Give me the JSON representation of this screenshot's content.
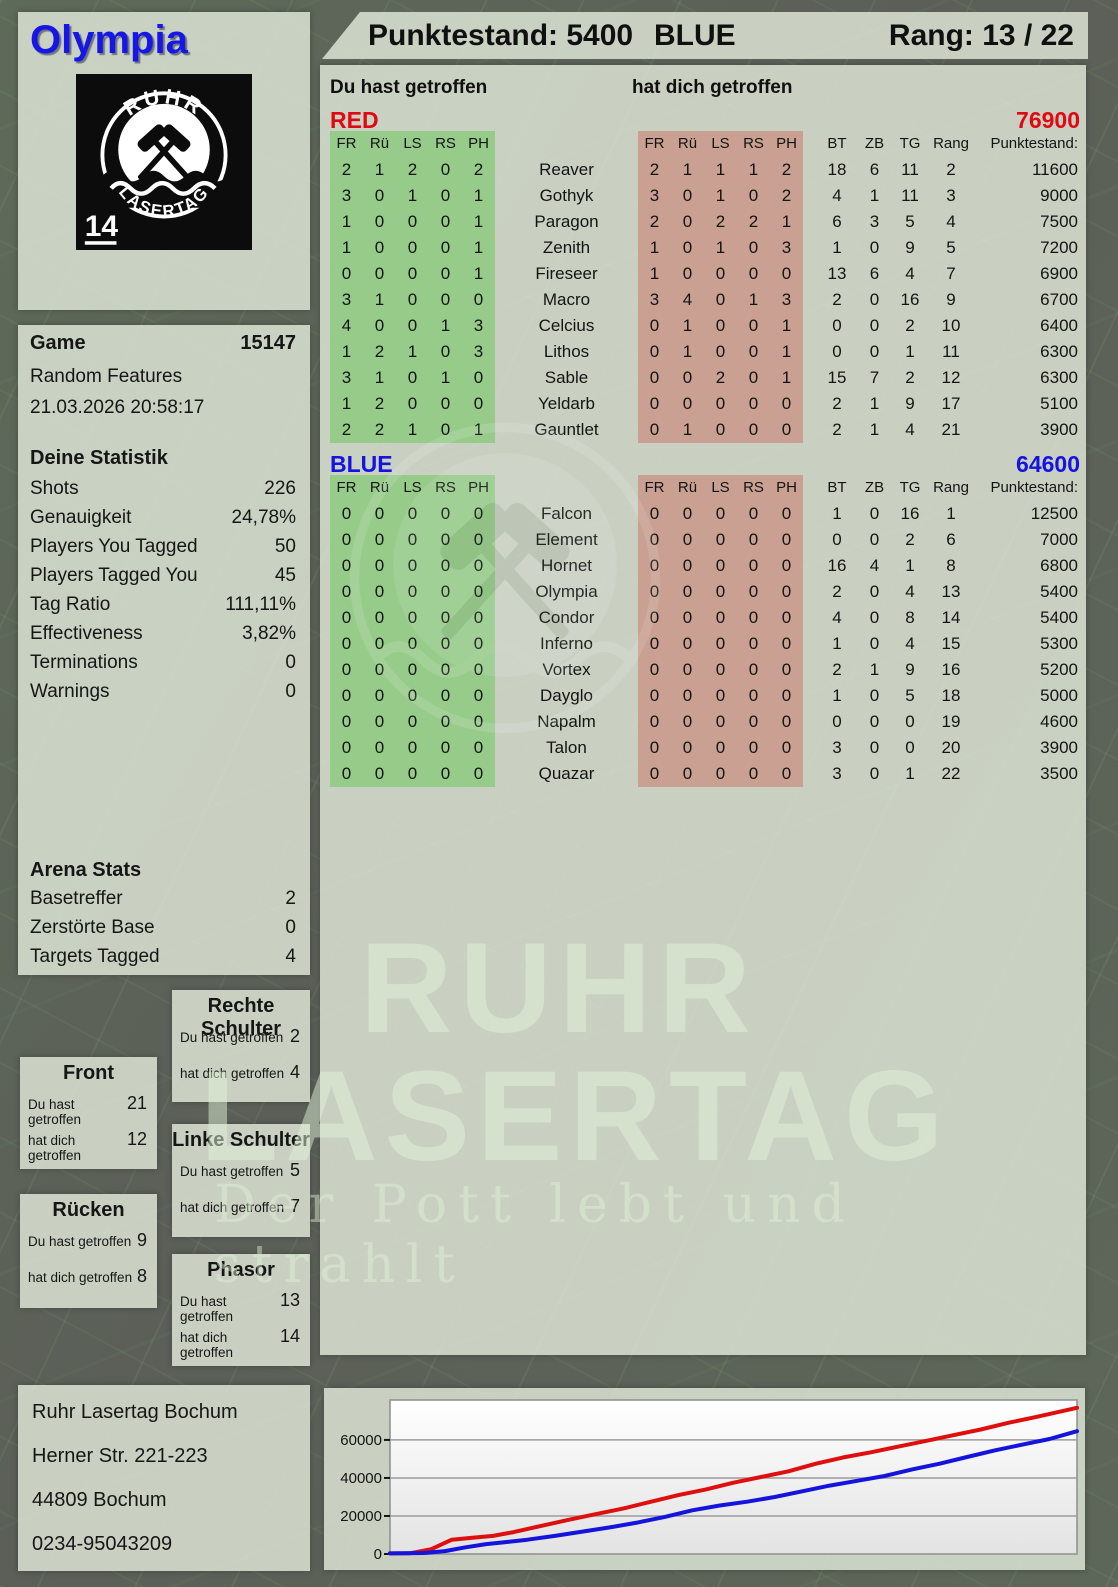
{
  "header": {
    "player": "Olympia",
    "punktestand": "Punktestand: 5400",
    "team": "BLUE",
    "rang": "Rang: 13 / 22"
  },
  "logo": {
    "arc_top": "RUHR",
    "arc_bottom": "LASERTAG",
    "badge": "14"
  },
  "game": {
    "label": "Game",
    "number": "15147",
    "mode": "Random Features",
    "datetime": "21.03.2026 20:58:17"
  },
  "deine_statistik": {
    "title": "Deine Statistik",
    "rows": [
      [
        "Shots",
        "226"
      ],
      [
        "Genauigkeit",
        "24,78%"
      ],
      [
        "Players You Tagged",
        "50"
      ],
      [
        "Players Tagged You",
        "45"
      ],
      [
        "Tag Ratio",
        "111,11%"
      ],
      [
        "Effectiveness",
        "3,82%"
      ],
      [
        "Terminations",
        "0"
      ],
      [
        "Warnings",
        "0"
      ]
    ]
  },
  "arena_stats": {
    "title": "Arena Stats",
    "rows": [
      [
        "Basetreffer",
        "2"
      ],
      [
        "Zerstörte Base",
        "0"
      ],
      [
        "Targets Tagged",
        "4"
      ]
    ]
  },
  "zones": {
    "du_label": "Du hast getroffen",
    "dich_label": "hat dich getroffen",
    "boxes": [
      {
        "id": "rechte-schulter",
        "title": "Rechte Schulter",
        "du": "2",
        "dich": "4"
      },
      {
        "id": "front",
        "title": "Front",
        "du": "21",
        "dich": "12"
      },
      {
        "id": "linke-schulter",
        "title": "Linke Schulter",
        "du": "5",
        "dich": "7"
      },
      {
        "id": "ruecken",
        "title": "Rücken",
        "du": "9",
        "dich": "8"
      },
      {
        "id": "phasor",
        "title": "Phasor",
        "du": "13",
        "dich": "14"
      }
    ]
  },
  "tables": {
    "du_header": "Du hast getroffen",
    "dich_header": "hat dich getroffen",
    "hit_cols": [
      "FR",
      "Rü",
      "LS",
      "RS",
      "PH"
    ],
    "stat_cols": [
      "BT",
      "ZB",
      "TG",
      "Rang",
      "Punktestand:"
    ],
    "teams": [
      {
        "name": "RED",
        "total": "76900",
        "color": "#e00812",
        "rows": [
          {
            "player": "Reaver",
            "du": [
              2,
              1,
              2,
              0,
              2
            ],
            "dich": [
              2,
              1,
              1,
              1,
              2
            ],
            "stats": [
              18,
              6,
              11,
              2,
              "11600"
            ]
          },
          {
            "player": "Gothyk",
            "du": [
              3,
              0,
              1,
              0,
              1
            ],
            "dich": [
              3,
              0,
              1,
              0,
              2
            ],
            "stats": [
              4,
              1,
              11,
              3,
              "9000"
            ]
          },
          {
            "player": "Paragon",
            "du": [
              1,
              0,
              0,
              0,
              1
            ],
            "dich": [
              2,
              0,
              2,
              2,
              1
            ],
            "stats": [
              6,
              3,
              5,
              4,
              "7500"
            ]
          },
          {
            "player": "Zenith",
            "du": [
              1,
              0,
              0,
              0,
              1
            ],
            "dich": [
              1,
              0,
              1,
              0,
              3
            ],
            "stats": [
              1,
              0,
              9,
              5,
              "7200"
            ]
          },
          {
            "player": "Fireseer",
            "du": [
              0,
              0,
              0,
              0,
              1
            ],
            "dich": [
              1,
              0,
              0,
              0,
              0
            ],
            "stats": [
              13,
              6,
              4,
              7,
              "6900"
            ]
          },
          {
            "player": "Macro",
            "du": [
              3,
              1,
              0,
              0,
              0
            ],
            "dich": [
              3,
              4,
              0,
              1,
              3
            ],
            "stats": [
              2,
              0,
              16,
              9,
              "6700"
            ]
          },
          {
            "player": "Celcius",
            "du": [
              4,
              0,
              0,
              1,
              3
            ],
            "dich": [
              0,
              1,
              0,
              0,
              1
            ],
            "stats": [
              0,
              0,
              2,
              10,
              "6400"
            ]
          },
          {
            "player": "Lithos",
            "du": [
              1,
              2,
              1,
              0,
              3
            ],
            "dich": [
              0,
              1,
              0,
              0,
              1
            ],
            "stats": [
              0,
              0,
              1,
              11,
              "6300"
            ]
          },
          {
            "player": "Sable",
            "du": [
              3,
              1,
              0,
              1,
              0
            ],
            "dich": [
              0,
              0,
              2,
              0,
              1
            ],
            "stats": [
              15,
              7,
              2,
              12,
              "6300"
            ]
          },
          {
            "player": "Yeldarb",
            "du": [
              1,
              2,
              0,
              0,
              0
            ],
            "dich": [
              0,
              0,
              0,
              0,
              0
            ],
            "stats": [
              2,
              1,
              9,
              17,
              "5100"
            ]
          },
          {
            "player": "Gauntlet",
            "du": [
              2,
              2,
              1,
              0,
              1
            ],
            "dich": [
              0,
              1,
              0,
              0,
              0
            ],
            "stats": [
              2,
              1,
              4,
              21,
              "3900"
            ]
          }
        ]
      },
      {
        "name": "BLUE",
        "total": "64600",
        "color": "#1513e0",
        "rows": [
          {
            "player": "Falcon",
            "du": [
              0,
              0,
              0,
              0,
              0
            ],
            "dich": [
              0,
              0,
              0,
              0,
              0
            ],
            "stats": [
              1,
              0,
              16,
              1,
              "12500"
            ]
          },
          {
            "player": "Element",
            "du": [
              0,
              0,
              0,
              0,
              0
            ],
            "dich": [
              0,
              0,
              0,
              0,
              0
            ],
            "stats": [
              0,
              0,
              2,
              6,
              "7000"
            ]
          },
          {
            "player": "Hornet",
            "du": [
              0,
              0,
              0,
              0,
              0
            ],
            "dich": [
              0,
              0,
              0,
              0,
              0
            ],
            "stats": [
              16,
              4,
              1,
              8,
              "6800"
            ]
          },
          {
            "player": "Olympia",
            "du": [
              0,
              0,
              0,
              0,
              0
            ],
            "dich": [
              0,
              0,
              0,
              0,
              0
            ],
            "stats": [
              2,
              0,
              4,
              13,
              "5400"
            ]
          },
          {
            "player": "Condor",
            "du": [
              0,
              0,
              0,
              0,
              0
            ],
            "dich": [
              0,
              0,
              0,
              0,
              0
            ],
            "stats": [
              4,
              0,
              8,
              14,
              "5400"
            ]
          },
          {
            "player": "Inferno",
            "du": [
              0,
              0,
              0,
              0,
              0
            ],
            "dich": [
              0,
              0,
              0,
              0,
              0
            ],
            "stats": [
              1,
              0,
              4,
              15,
              "5300"
            ]
          },
          {
            "player": "Vortex",
            "du": [
              0,
              0,
              0,
              0,
              0
            ],
            "dich": [
              0,
              0,
              0,
              0,
              0
            ],
            "stats": [
              2,
              1,
              9,
              16,
              "5200"
            ]
          },
          {
            "player": "Dayglo",
            "du": [
              0,
              0,
              0,
              0,
              0
            ],
            "dich": [
              0,
              0,
              0,
              0,
              0
            ],
            "stats": [
              1,
              0,
              5,
              18,
              "5000"
            ]
          },
          {
            "player": "Napalm",
            "du": [
              0,
              0,
              0,
              0,
              0
            ],
            "dich": [
              0,
              0,
              0,
              0,
              0
            ],
            "stats": [
              0,
              0,
              0,
              19,
              "4600"
            ]
          },
          {
            "player": "Talon",
            "du": [
              0,
              0,
              0,
              0,
              0
            ],
            "dich": [
              0,
              0,
              0,
              0,
              0
            ],
            "stats": [
              3,
              0,
              0,
              20,
              "3900"
            ]
          },
          {
            "player": "Quazar",
            "du": [
              0,
              0,
              0,
              0,
              0
            ],
            "dich": [
              0,
              0,
              0,
              0,
              0
            ],
            "stats": [
              3,
              0,
              1,
              22,
              "3500"
            ]
          }
        ]
      }
    ]
  },
  "address": {
    "lines": [
      "Ruhr Lasertag Bochum",
      "Herner Str. 221-223",
      "44809 Bochum",
      "0234-95043209"
    ]
  },
  "watermark": {
    "line1": "RUHR",
    "line2": "LASERTAG",
    "subtitle": "Der Pott lebt und strahlt"
  },
  "chart_data": {
    "type": "line",
    "title": "",
    "xlabel": "",
    "ylabel": "",
    "ylim": [
      0,
      81000
    ],
    "yticks": [
      0,
      20000,
      40000,
      60000
    ],
    "grid": true,
    "legend": "none",
    "x_range": [
      0,
      1
    ],
    "x_ticks_visible": false,
    "series": [
      {
        "name": "RED",
        "color": "#df0f0f",
        "final_score": 76900,
        "points": [
          [
            0,
            300
          ],
          [
            0.03,
            400
          ],
          [
            0.06,
            2500
          ],
          [
            0.09,
            7500
          ],
          [
            0.12,
            8500
          ],
          [
            0.15,
            9500
          ],
          [
            0.18,
            11500
          ],
          [
            0.22,
            14800
          ],
          [
            0.26,
            18000
          ],
          [
            0.3,
            21000
          ],
          [
            0.34,
            24000
          ],
          [
            0.38,
            27500
          ],
          [
            0.42,
            31000
          ],
          [
            0.46,
            34000
          ],
          [
            0.5,
            37500
          ],
          [
            0.54,
            40500
          ],
          [
            0.58,
            43500
          ],
          [
            0.62,
            47500
          ],
          [
            0.66,
            50800
          ],
          [
            0.7,
            53500
          ],
          [
            0.74,
            56500
          ],
          [
            0.78,
            59500
          ],
          [
            0.82,
            62500
          ],
          [
            0.86,
            65500
          ],
          [
            0.9,
            69000
          ],
          [
            0.94,
            72000
          ],
          [
            1,
            76900
          ]
        ]
      },
      {
        "name": "BLUE",
        "color": "#1414dd",
        "final_score": 64600,
        "points": [
          [
            0,
            300
          ],
          [
            0.05,
            500
          ],
          [
            0.08,
            1500
          ],
          [
            0.11,
            3500
          ],
          [
            0.14,
            5200
          ],
          [
            0.17,
            6300
          ],
          [
            0.2,
            7500
          ],
          [
            0.24,
            9500
          ],
          [
            0.28,
            11800
          ],
          [
            0.32,
            14000
          ],
          [
            0.36,
            16500
          ],
          [
            0.4,
            19500
          ],
          [
            0.44,
            23000
          ],
          [
            0.48,
            25500
          ],
          [
            0.52,
            27500
          ],
          [
            0.56,
            30000
          ],
          [
            0.6,
            33000
          ],
          [
            0.64,
            36000
          ],
          [
            0.68,
            38500
          ],
          [
            0.72,
            41000
          ],
          [
            0.76,
            44500
          ],
          [
            0.8,
            47500
          ],
          [
            0.84,
            51000
          ],
          [
            0.88,
            54500
          ],
          [
            0.92,
            57500
          ],
          [
            0.96,
            60500
          ],
          [
            1,
            64600
          ]
        ]
      }
    ]
  }
}
